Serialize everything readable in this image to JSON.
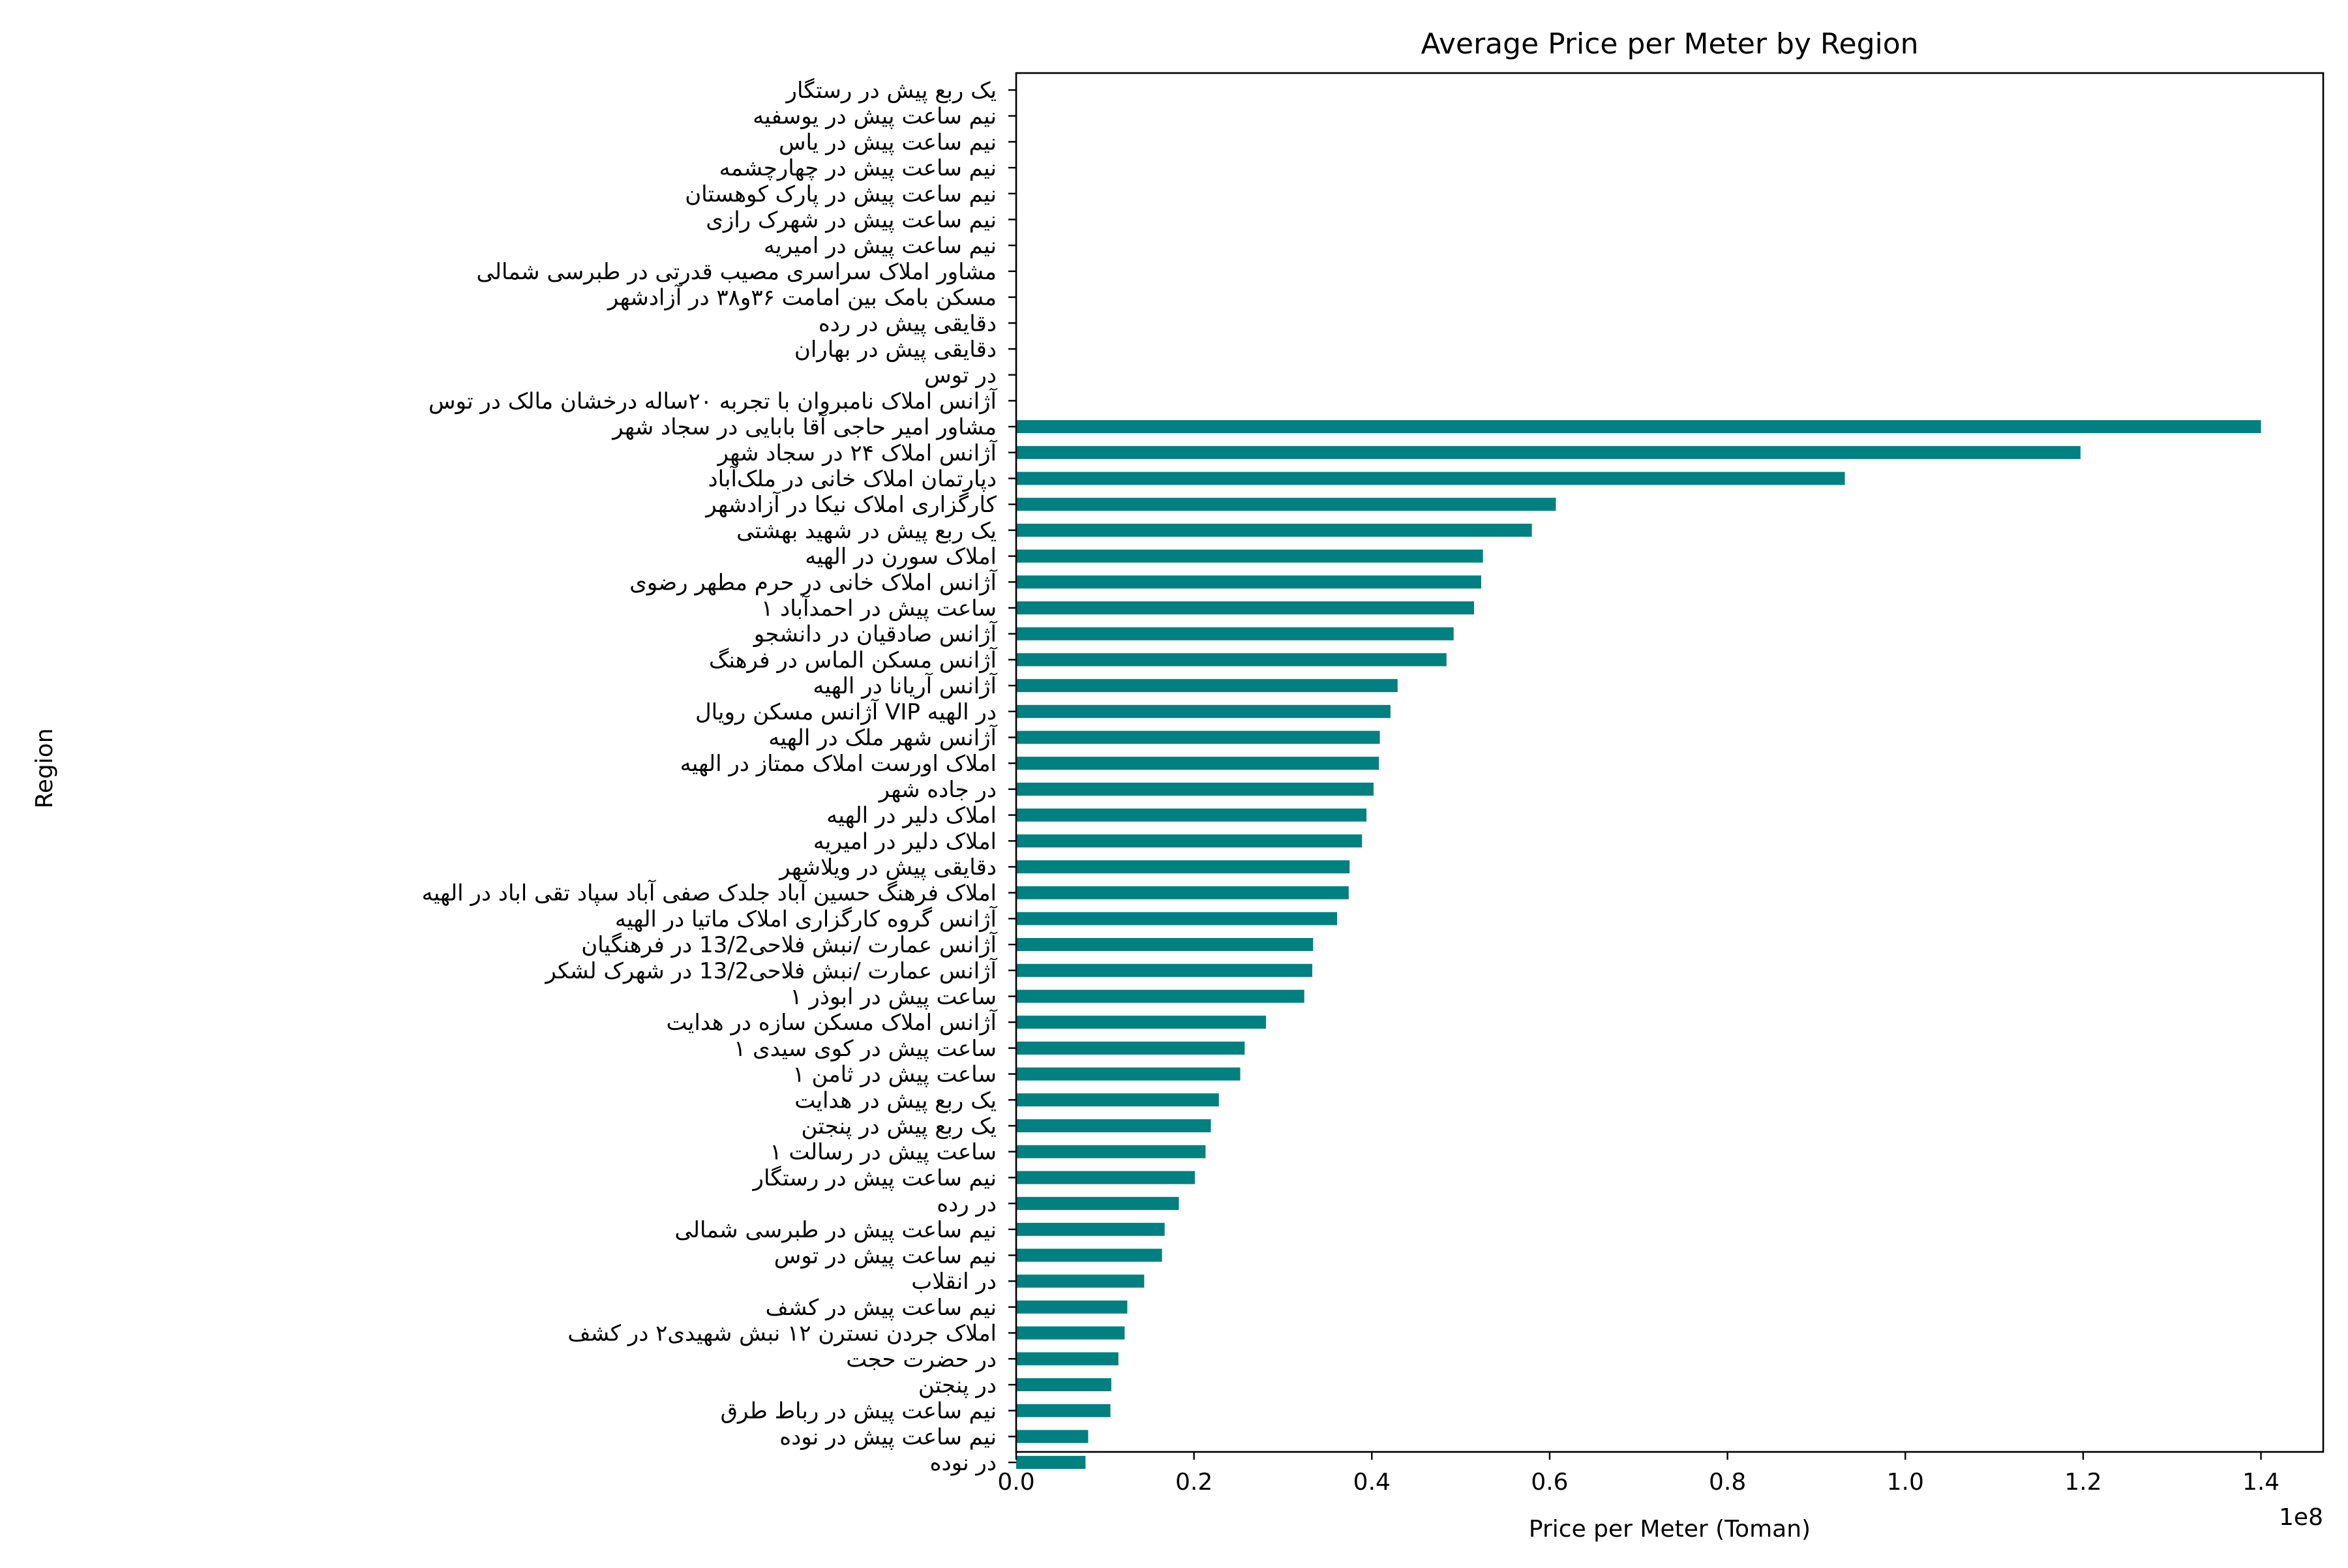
{
  "chart_data": {
    "type": "bar",
    "orientation": "horizontal",
    "title": "Average Price per Meter by Region",
    "xlabel": "Price per Meter (Toman)",
    "ylabel": "Region",
    "x_offset_text": "1e8",
    "xlim": [
      0,
      147000000
    ],
    "x_ticks": [
      0,
      20000000,
      40000000,
      60000000,
      80000000,
      100000000,
      120000000,
      140000000
    ],
    "x_tick_labels": [
      "0.0",
      "0.2",
      "0.4",
      "0.6",
      "0.8",
      "1.0",
      "1.2",
      "1.4"
    ],
    "grid": false,
    "bar_color": "#008080",
    "categories": [
      "یک ربع پیش در رستگار",
      "نیم ساعت پیش در یوسفیه",
      "نیم ساعت پیش در یاس",
      "نیم ساعت پیش در چهارچشمه",
      "نیم ساعت پیش در پارک کوهستان",
      "نیم ساعت پیش در شهرک رازی",
      "نیم ساعت پیش در امیریه",
      "مشاور املاک سراسری مصیب قدرتی در طبرسی شمالی",
      "مسکن بامک بین امامت ۳۶و۳۸ در آزادشهر",
      "دقایقی پیش در رده",
      "دقایقی پیش در بهاران",
      "در توس",
      "آژانس املاک نامبروان با تجربه ۲۰ساله درخشان مالک در توس",
      "مشاور امیر حاجی آقا بابایی در سجاد شهر",
      "آژانس املاک ۲۴ در سجاد شهر",
      "دپارتمان املاک خانی در ملک‌آباد",
      "کارگزاری املاک نیکا در آزادشهر",
      "یک ربع پیش در شهید بهشتی",
      "املاک سورن در الهیه",
      "آژانس املاک خانی در حرم مطهر رضوی",
      "۱ ساعت پیش در احمدآباد",
      "آژانس صادقیان در دانشجو",
      "آژانس مسکن الماس در فرهنگ",
      "آژانس آریانا در الهیه",
      "آژانس مسکن رویال VIP در الهیه",
      "آژانس شهر ملک در الهیه",
      "املاک اورست املاک ممتاز در الهیه",
      "در جاده شهر",
      "املاک دلیر در الهیه",
      "املاک دلیر در امیریه",
      "دقایقی پیش در ویلاشهر",
      "املاک فرهنگ حسین آباد جلدک صفی آباد سپاد تقی اباد در الهیه",
      "آژانس گروه کارگزاری املاک ماتیا در الهیه",
      "آژانس عمارت /نبش فلاحی13/2 در فرهنگیان",
      "آژانس عمارت /نبش فلاحی13/2 در شهرک لشکر",
      "۱ ساعت پیش در ابوذر",
      "آژانس املاک مسکن سازه در هدایت",
      "۱ ساعت پیش در کوی سیدی",
      "۱ ساعت پیش در ثامن",
      "یک ربع پیش در هدایت",
      "یک ربع پیش در پنجتن",
      "۱ ساعت پیش در رسالت",
      "نیم ساعت پیش در رستگار",
      "در رده",
      "نیم ساعت پیش در طبرسی شمالی",
      "نیم ساعت پیش در توس",
      "در انقلاب",
      "نیم ساعت پیش در کشف",
      "املاک جردن نسترن ۱۲ نبش شهیدی۲ در کشف",
      "در حضرت حجت",
      "در پنجتن",
      "نیم ساعت پیش در رباط طرق",
      "نیم ساعت پیش در نوده",
      "در نوده"
    ],
    "values": [
      0,
      0,
      0,
      0,
      0,
      0,
      0,
      0,
      0,
      0,
      0,
      0,
      0,
      140000000,
      119700000,
      93200000,
      60700000,
      58000000,
      52500000,
      52300000,
      51500000,
      49200000,
      48400000,
      42900000,
      42100000,
      40900000,
      40800000,
      40200000,
      39400000,
      38900000,
      37500000,
      37400000,
      36100000,
      33400000,
      33300000,
      32400000,
      28100000,
      25700000,
      25200000,
      22800000,
      21900000,
      21300000,
      20100000,
      18300000,
      16700000,
      16400000,
      14400000,
      12500000,
      12200000,
      11500000,
      10700000,
      10600000,
      8100000,
      7800000
    ]
  }
}
